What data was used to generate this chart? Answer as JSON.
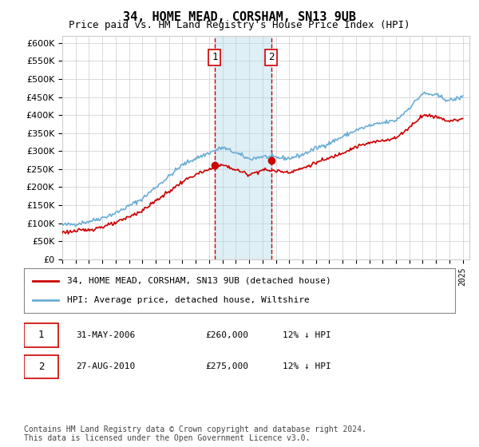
{
  "title": "34, HOME MEAD, CORSHAM, SN13 9UB",
  "subtitle": "Price paid vs. HM Land Registry's House Price Index (HPI)",
  "ylabel_ticks": [
    "£0",
    "£50K",
    "£100K",
    "£150K",
    "£200K",
    "£250K",
    "£300K",
    "£350K",
    "£400K",
    "£450K",
    "£500K",
    "£550K",
    "£600K"
  ],
  "ylim": [
    0,
    620000
  ],
  "yticks": [
    0,
    50000,
    100000,
    150000,
    200000,
    250000,
    300000,
    350000,
    400000,
    450000,
    500000,
    550000,
    600000
  ],
  "sale1_date": 2006.42,
  "sale1_price": 260000,
  "sale2_date": 2010.66,
  "sale2_price": 275000,
  "sale1_label": "1",
  "sale2_label": "2",
  "legend_property": "34, HOME MEAD, CORSHAM, SN13 9UB (detached house)",
  "legend_hpi": "HPI: Average price, detached house, Wiltshire",
  "footer": "Contains HM Land Registry data © Crown copyright and database right 2024.\nThis data is licensed under the Open Government Licence v3.0.",
  "table_row1": "1    31-MAY-2006         £260,000        12% ↓ HPI",
  "table_row2": "2    27-AUG-2010         £275,000        12% ↓ HPI",
  "hpi_color": "#6baed6",
  "property_color": "#cc0000",
  "sale_marker_color": "#cc0000",
  "vspan_color": "#add8e6",
  "vline_color": "#cc0000",
  "background_color": "#ffffff",
  "grid_color": "#cccccc"
}
